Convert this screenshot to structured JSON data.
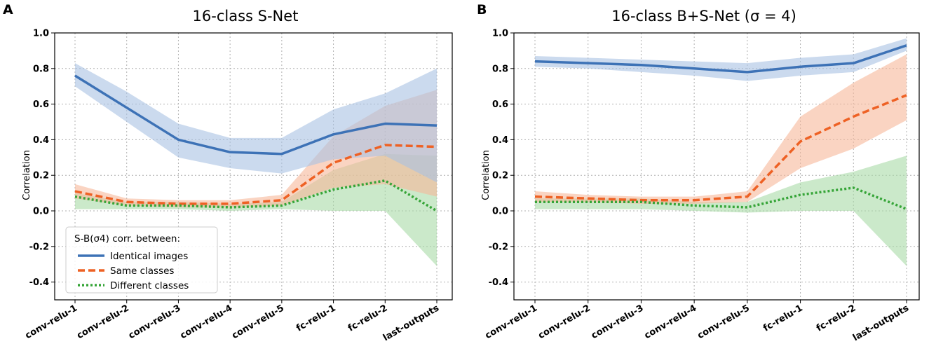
{
  "colors": {
    "identical": "#3d72b6",
    "same": "#ee6124",
    "different": "#36a538",
    "identical_band": "#a9c1e3",
    "same_band": "#f7b79a",
    "different_band": "#a8dba6"
  },
  "chart_data": [
    {
      "type": "line",
      "panel_letter": "A",
      "title": "16-class S-Net",
      "xlabel": "",
      "ylabel": "Correlation",
      "ylim": [
        -0.5,
        1.0
      ],
      "yticks": [
        "-0.4",
        "-0.2",
        "0.0",
        "0.2",
        "0.4",
        "0.6",
        "0.8",
        "1.0"
      ],
      "ytick_values": [
        -0.4,
        -0.2,
        0.0,
        0.2,
        0.4,
        0.6,
        0.8,
        1.0
      ],
      "grid": true,
      "categories": [
        "conv-relu-1",
        "conv-relu-2",
        "conv-relu-3",
        "conv-relu-4",
        "conv-relu-5",
        "fc-relu-1",
        "fc-relu-2",
        "last-outputs"
      ],
      "legend": {
        "title": "S-B(σ4) corr. between:",
        "placement": "lower-left"
      },
      "series": [
        {
          "key": "identical",
          "name": "Identical images",
          "values": [
            0.76,
            0.58,
            0.4,
            0.33,
            0.32,
            0.43,
            0.49,
            0.48
          ],
          "lower": [
            0.7,
            0.5,
            0.3,
            0.24,
            0.21,
            0.29,
            0.31,
            0.16
          ],
          "upper": [
            0.83,
            0.67,
            0.49,
            0.41,
            0.41,
            0.57,
            0.66,
            0.8
          ]
        },
        {
          "key": "same",
          "name": "Same classes",
          "values": [
            0.11,
            0.05,
            0.04,
            0.04,
            0.06,
            0.27,
            0.37,
            0.36
          ],
          "lower": [
            0.07,
            0.03,
            0.02,
            0.02,
            0.03,
            0.13,
            0.15,
            0.08
          ],
          "upper": [
            0.15,
            0.07,
            0.06,
            0.06,
            0.09,
            0.42,
            0.59,
            0.68
          ]
        },
        {
          "key": "different",
          "name": "Different classes",
          "values": [
            0.08,
            0.03,
            0.03,
            0.02,
            0.03,
            0.12,
            0.17,
            0.0
          ],
          "lower": [
            0.01,
            0.01,
            0.01,
            0.0,
            0.01,
            0.0,
            0.0,
            -0.31
          ],
          "upper": [
            0.1,
            0.05,
            0.05,
            0.04,
            0.05,
            0.23,
            0.32,
            0.31
          ]
        }
      ]
    },
    {
      "type": "line",
      "panel_letter": "B",
      "title": "16-class B+S-Net (σ = 4)",
      "xlabel": "",
      "ylabel": "Correlation",
      "ylim": [
        -0.5,
        1.0
      ],
      "yticks": [
        "-0.4",
        "-0.2",
        "0.0",
        "0.2",
        "0.4",
        "0.6",
        "0.8",
        "1.0"
      ],
      "ytick_values": [
        -0.4,
        -0.2,
        0.0,
        0.2,
        0.4,
        0.6,
        0.8,
        1.0
      ],
      "grid": true,
      "categories": [
        "conv-relu-1",
        "conv-relu-2",
        "conv-relu-3",
        "conv-relu-4",
        "conv-relu-5",
        "fc-relu-1",
        "fc-relu-2",
        "last-outputs"
      ],
      "series": [
        {
          "key": "identical",
          "name": "Identical images",
          "values": [
            0.84,
            0.83,
            0.82,
            0.8,
            0.78,
            0.81,
            0.83,
            0.93
          ],
          "lower": [
            0.81,
            0.8,
            0.78,
            0.76,
            0.73,
            0.76,
            0.78,
            0.9
          ],
          "upper": [
            0.87,
            0.86,
            0.85,
            0.84,
            0.83,
            0.86,
            0.88,
            0.97
          ]
        },
        {
          "key": "same",
          "name": "Same classes",
          "values": [
            0.08,
            0.07,
            0.06,
            0.06,
            0.08,
            0.39,
            0.53,
            0.65
          ],
          "lower": [
            0.05,
            0.05,
            0.04,
            0.04,
            0.05,
            0.24,
            0.35,
            0.51
          ],
          "upper": [
            0.11,
            0.09,
            0.08,
            0.08,
            0.11,
            0.53,
            0.72,
            0.88
          ]
        },
        {
          "key": "different",
          "name": "Different classes",
          "values": [
            0.05,
            0.05,
            0.05,
            0.03,
            0.02,
            0.09,
            0.13,
            0.01
          ],
          "lower": [
            0.01,
            0.01,
            0.01,
            0.0,
            -0.01,
            0.0,
            0.0,
            -0.31
          ],
          "upper": [
            0.07,
            0.07,
            0.07,
            0.05,
            0.05,
            0.16,
            0.22,
            0.31
          ]
        }
      ]
    }
  ]
}
